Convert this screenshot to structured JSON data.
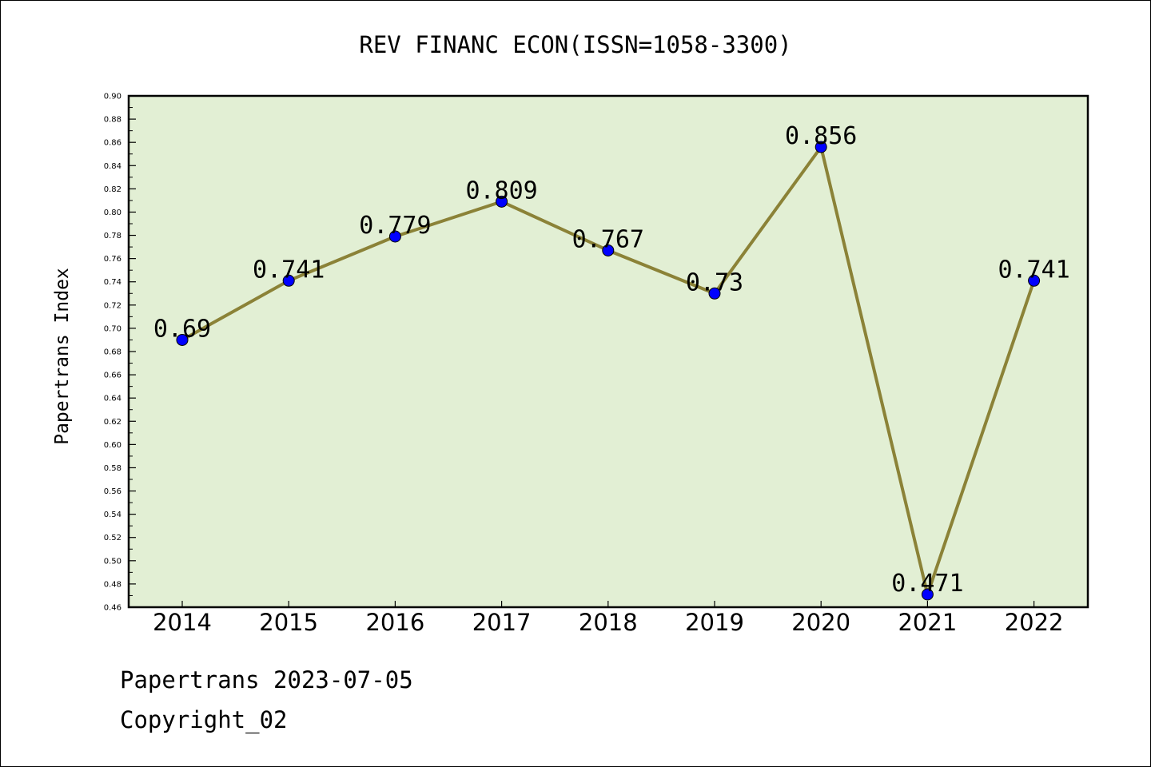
{
  "chart_data": {
    "type": "line",
    "title": "REV FINANC ECON(ISSN=1058-3300)",
    "ylabel": "Papertrans Index",
    "xlabel": "",
    "categories": [
      "2014",
      "2015",
      "2016",
      "2017",
      "2018",
      "2019",
      "2020",
      "2021",
      "2022"
    ],
    "values": [
      0.69,
      0.741,
      0.779,
      0.809,
      0.767,
      0.73,
      0.856,
      0.471,
      0.741
    ],
    "data_labels": [
      "0.69",
      "0.741",
      "0.779",
      "0.809",
      "0.767",
      "0.73",
      "0.856",
      "0.471",
      "0.741"
    ],
    "ylim": [
      0.46,
      0.9
    ],
    "yticks": [
      "0.46",
      "0.48",
      "0.50",
      "0.52",
      "0.54",
      "0.56",
      "0.58",
      "0.60",
      "0.62",
      "0.64",
      "0.66",
      "0.68",
      "0.70",
      "0.72",
      "0.74",
      "0.76",
      "0.78",
      "0.80",
      "0.82",
      "0.84",
      "0.86",
      "0.88",
      "0.90"
    ],
    "grid": false,
    "colors": {
      "plot_bg": "#e2efd4",
      "line": "#8b8237",
      "marker": "#0000ff"
    }
  },
  "footer": {
    "line1": "Papertrans 2023-07-05",
    "line2": "Copyright_02"
  }
}
